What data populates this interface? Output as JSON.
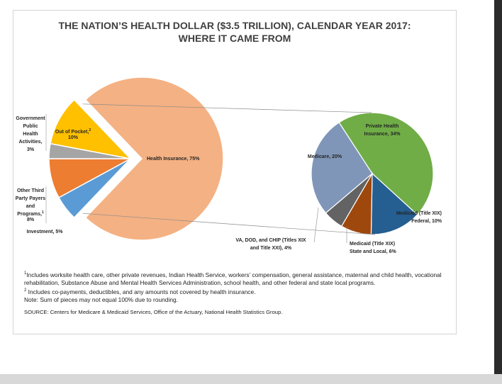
{
  "chart_data": {
    "type": "pie",
    "title": [
      "THE NATION’S HEALTH DOLLAR ($3.5 TRILLION), CALENDAR YEAR 2017:",
      "WHERE IT CAME FROM"
    ],
    "main_pie": [
      {
        "label": "Health Insurance, 75%",
        "value": 75,
        "color": "#f4b183",
        "exploded": true
      },
      {
        "label": "Investment, 5%",
        "value": 5,
        "color": "#5b9bd5"
      },
      {
        "label": "Other Third Party Payers and Programs, 8%",
        "value": 8,
        "color": "#ed7d31",
        "superscript": "1"
      },
      {
        "label": "Government Public Health Activities, 3%",
        "value": 3,
        "color": "#a5a5a5"
      },
      {
        "label": "Out of Pocket, 10%",
        "value": 10,
        "color": "#ffc000",
        "superscript": "2"
      }
    ],
    "sub_pie": [
      {
        "label": "Private Health Insurance, 34%",
        "value": 34,
        "color": "#70ad47"
      },
      {
        "label": "Medicaid (Title XIX) Federal, 10%",
        "value": 10,
        "color": "#255e91"
      },
      {
        "label": "Medicaid (Title XIX) State and Local, 6%",
        "value": 6,
        "color": "#9e480e"
      },
      {
        "label": "VA, DOD, and CHIP (Titles XIX and Title XXI), 4%",
        "value": 4,
        "color": "#636363"
      },
      {
        "label": "Medicare, 20%",
        "value": 20,
        "color": "#7f96b8"
      }
    ]
  },
  "notes": {
    "note1": "Includes worksite health care, other private revenues, Indian Health Service, workers’ compensation, general assistance, maternal and child health, vocational rehabilitation, Substance Abuse and Mental Health Services Administration, school health, and other federal and state local programs.",
    "note1_mark": "1",
    "note2": "Includes co-payments, deductibles, and any amounts not covered by health insurance.",
    "note2_mark": "2",
    "note3": "Note: Sum of pieces may not equal 100% due to rounding.",
    "source": "SOURCE: Centers for Medicare & Medicaid Services, Office of the Actuary, National Health Statistics Group."
  }
}
